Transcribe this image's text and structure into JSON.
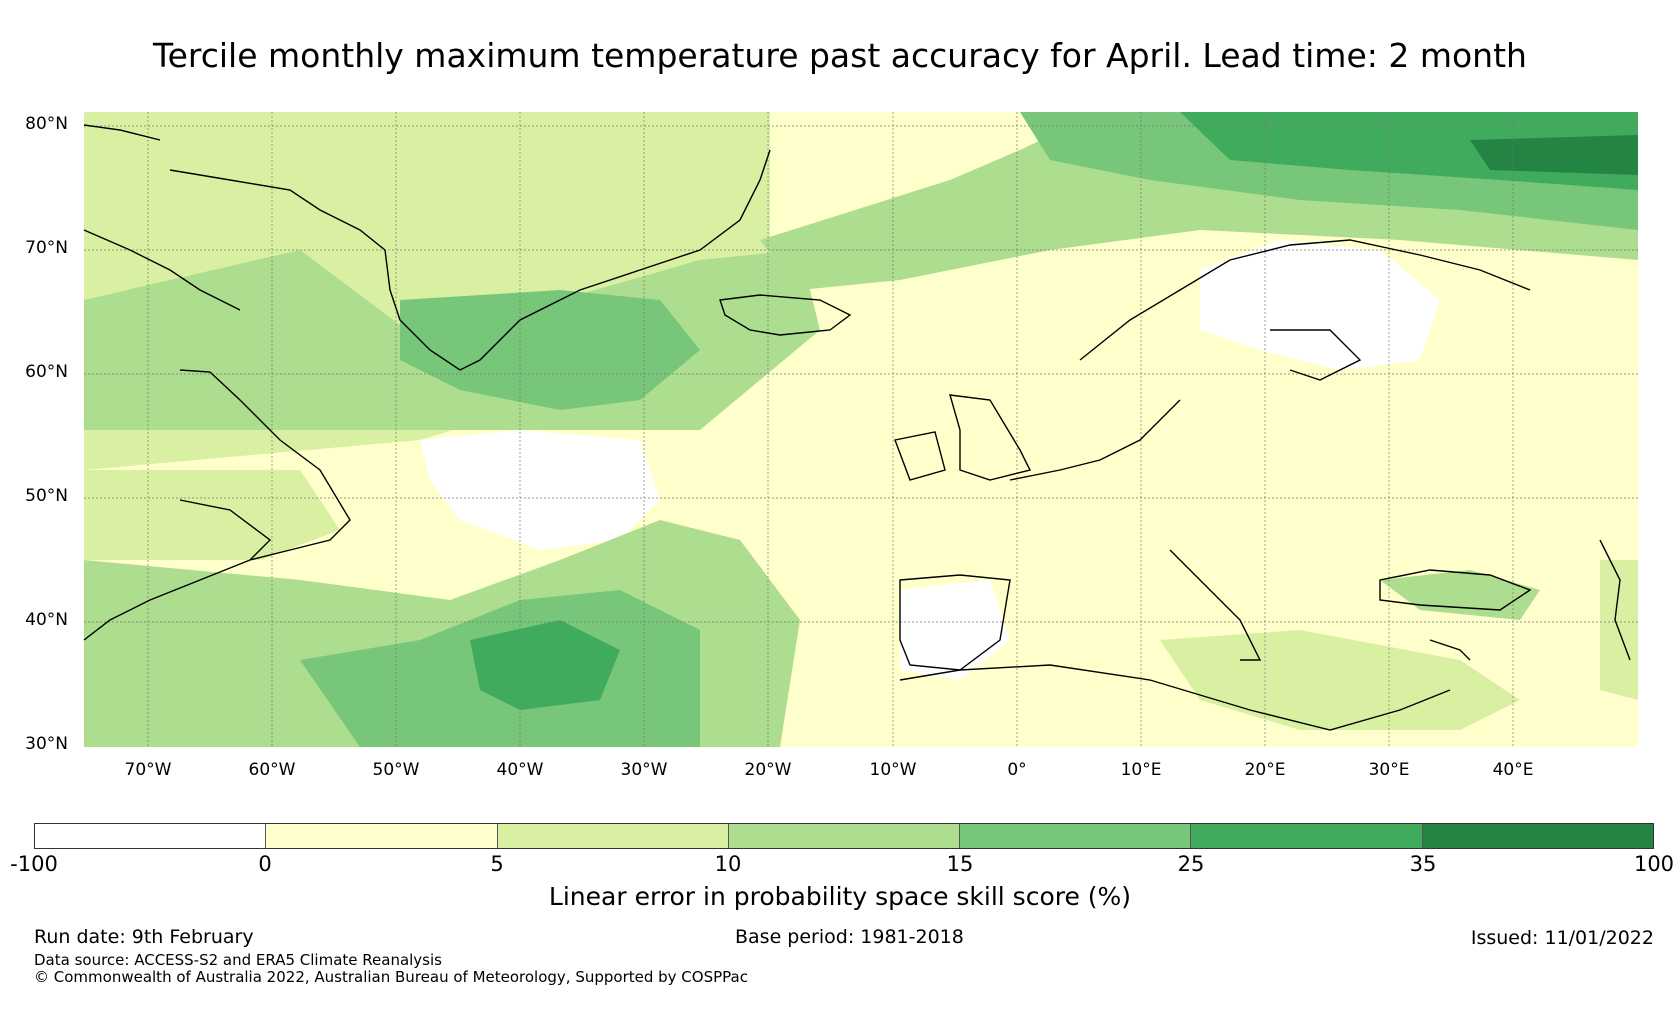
{
  "title": "Tercile monthly maximum temperature past accuracy for April. Lead time: 2 month",
  "map": {
    "lat_labels": [
      "80°N",
      "70°N",
      "60°N",
      "50°N",
      "40°N",
      "30°N"
    ],
    "lon_labels": [
      "70°W",
      "60°W",
      "50°W",
      "40°W",
      "30°W",
      "20°W",
      "10°W",
      "0°",
      "10°E",
      "20°E",
      "30°E",
      "40°E"
    ],
    "extent": {
      "lon_min": -75,
      "lon_max": 50,
      "lat_min": 30,
      "lat_max": 81
    }
  },
  "colorbar": {
    "ticks": [
      "-100",
      "0",
      "5",
      "10",
      "15",
      "25",
      "35",
      "100"
    ],
    "colors": [
      "#ffffff",
      "#ffffcc",
      "#d9f0a3",
      "#addd8e",
      "#78c679",
      "#41ab5d",
      "#238443"
    ],
    "label": "Linear error in probability space skill score (%)"
  },
  "footer": {
    "run_date": "Run date: 9th February",
    "base_period": "Base period: 1981-2018",
    "issued": "Issued: 11/01/2022",
    "data_source": "Data source: ACCESS-S2 and ERA5 Climate Reanalysis",
    "copyright": "© Commonwealth of Australia 2022, Australian Bureau of Meteorology, Supported by COSPPac"
  }
}
